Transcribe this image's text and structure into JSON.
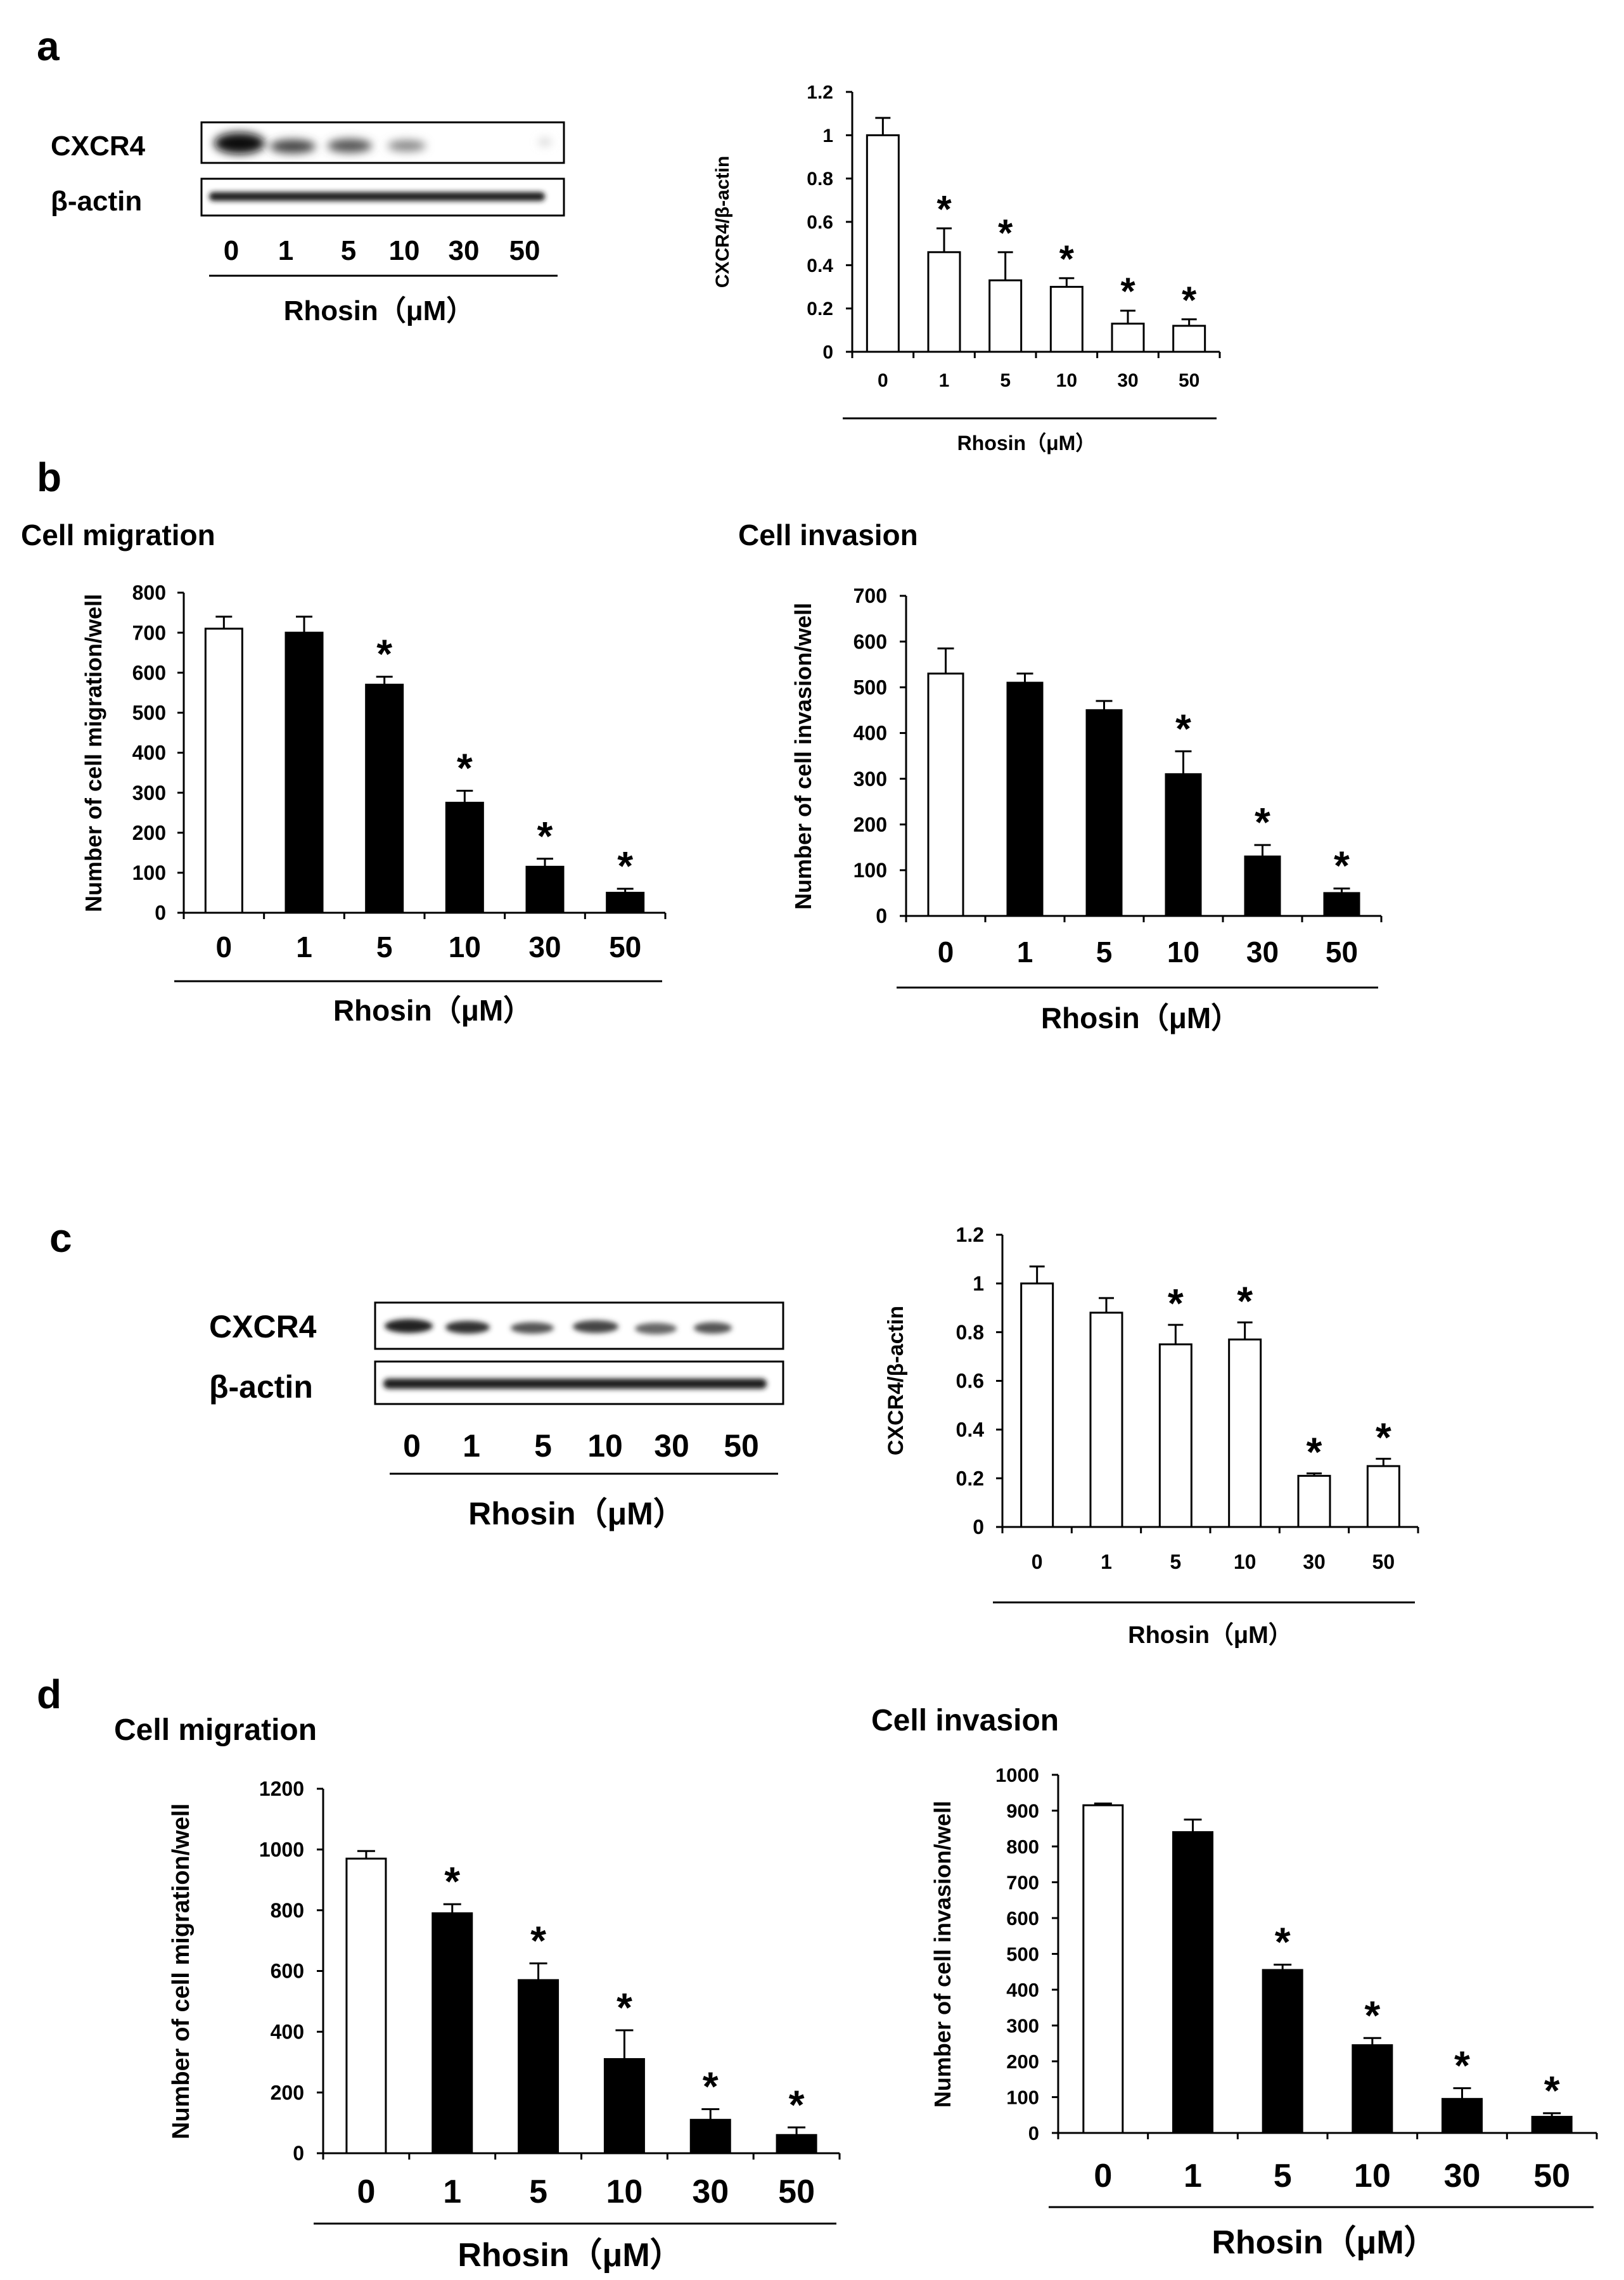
{
  "panels": {
    "a": {
      "label": "a",
      "blot": {
        "bands": [
          "CXCR4",
          "β-actin"
        ],
        "lanes": [
          "0",
          "1",
          "5",
          "10",
          "30",
          "50"
        ],
        "xlabel": "Rhosin（μM）"
      }
    },
    "b": {
      "label": "b",
      "titles": [
        "Cell migration",
        "Cell invasion"
      ]
    },
    "c": {
      "label": "c",
      "blot": {
        "bands": [
          "CXCR4",
          "β-actin"
        ],
        "lanes": [
          "0",
          "1",
          "5",
          "10",
          "30",
          "50"
        ],
        "xlabel": "Rhosin（μM）"
      }
    },
    "d": {
      "label": "d",
      "titles": [
        "Cell migration",
        "Cell invasion"
      ]
    }
  },
  "chart_data": [
    {
      "id": "a-right",
      "type": "bar",
      "title": "",
      "categories": [
        "0",
        "1",
        "5",
        "10",
        "30",
        "50"
      ],
      "values": [
        1.0,
        0.46,
        0.33,
        0.3,
        0.13,
        0.12
      ],
      "errors": [
        0.08,
        0.11,
        0.13,
        0.04,
        0.06,
        0.03
      ],
      "fills": [
        "white",
        "white",
        "white",
        "white",
        "white",
        "white"
      ],
      "significant": [
        false,
        true,
        true,
        true,
        true,
        true
      ],
      "star": "*",
      "xlabel": "Rhosin（μM）",
      "ylabel": "CXCR4/β-actin",
      "ylim": [
        0,
        1.2
      ],
      "yticks": [
        "0",
        "0.2",
        "0.4",
        "0.6",
        "0.8",
        "1",
        "1.2"
      ],
      "ytick_values": [
        0,
        0.2,
        0.4,
        0.6,
        0.8,
        1.0,
        1.2
      ]
    },
    {
      "id": "b-left",
      "type": "bar",
      "title": "Cell migration",
      "categories": [
        "0",
        "1",
        "5",
        "10",
        "30",
        "50"
      ],
      "values": [
        710,
        700,
        570,
        275,
        115,
        50
      ],
      "errors": [
        30,
        40,
        20,
        30,
        20,
        10
      ],
      "fills": [
        "white",
        "black",
        "black",
        "black",
        "black",
        "black"
      ],
      "significant": [
        false,
        false,
        true,
        true,
        true,
        true
      ],
      "star": "*",
      "xlabel": "Rhosin（μM）",
      "ylabel": "Number of cell migration/well",
      "ylim": [
        0,
        800
      ],
      "yticks": [
        "0",
        "100",
        "200",
        "300",
        "400",
        "500",
        "600",
        "700",
        "800"
      ],
      "ytick_values": [
        0,
        100,
        200,
        300,
        400,
        500,
        600,
        700,
        800
      ]
    },
    {
      "id": "b-right",
      "type": "bar",
      "title": "Cell invasion",
      "categories": [
        "0",
        "1",
        "5",
        "10",
        "30",
        "50"
      ],
      "values": [
        530,
        510,
        450,
        310,
        130,
        50
      ],
      "errors": [
        55,
        20,
        20,
        50,
        25,
        10
      ],
      "fills": [
        "white",
        "black",
        "black",
        "black",
        "black",
        "black"
      ],
      "significant": [
        false,
        false,
        false,
        true,
        true,
        true
      ],
      "star": "*",
      "xlabel": "Rhosin（μM）",
      "ylabel": "Number of cell invasion/well",
      "ylim": [
        0,
        700
      ],
      "yticks": [
        "0",
        "100",
        "200",
        "300",
        "400",
        "500",
        "600",
        "700"
      ],
      "ytick_values": [
        0,
        100,
        200,
        300,
        400,
        500,
        600,
        700
      ]
    },
    {
      "id": "c-right",
      "type": "bar",
      "title": "",
      "categories": [
        "0",
        "1",
        "5",
        "10",
        "30",
        "50"
      ],
      "values": [
        1.0,
        0.88,
        0.75,
        0.77,
        0.21,
        0.25
      ],
      "errors": [
        0.07,
        0.06,
        0.08,
        0.07,
        0.01,
        0.03
      ],
      "fills": [
        "white",
        "white",
        "white",
        "white",
        "white",
        "white"
      ],
      "significant": [
        false,
        false,
        true,
        true,
        true,
        true
      ],
      "star": "*",
      "xlabel": "Rhosin（μM）",
      "ylabel": "CXCR4/β-actin",
      "ylim": [
        0,
        1.2
      ],
      "yticks": [
        "0",
        "0.2",
        "0.4",
        "0.6",
        "0.8",
        "1",
        "1.2"
      ],
      "ytick_values": [
        0,
        0.2,
        0.4,
        0.6,
        0.8,
        1.0,
        1.2
      ]
    },
    {
      "id": "d-left",
      "type": "bar",
      "title": "Cell migration",
      "categories": [
        "0",
        "1",
        "5",
        "10",
        "30",
        "50"
      ],
      "values": [
        970,
        790,
        570,
        310,
        110,
        60
      ],
      "errors": [
        25,
        30,
        55,
        95,
        35,
        25
      ],
      "fills": [
        "white",
        "black",
        "black",
        "black",
        "black",
        "black"
      ],
      "significant": [
        false,
        true,
        true,
        true,
        true,
        true
      ],
      "star": "*",
      "xlabel": "Rhosin（μM）",
      "ylabel": "Number of cell migration/well",
      "ylim": [
        0,
        1200
      ],
      "yticks": [
        "0",
        "200",
        "400",
        "600",
        "800",
        "1000",
        "1200"
      ],
      "ytick_values": [
        0,
        200,
        400,
        600,
        800,
        1000,
        1200
      ]
    },
    {
      "id": "d-right",
      "type": "bar",
      "title": "Cell invasion",
      "categories": [
        "0",
        "1",
        "5",
        "10",
        "30",
        "50"
      ],
      "values": [
        915,
        840,
        455,
        245,
        95,
        45
      ],
      "errors": [
        5,
        35,
        15,
        20,
        30,
        10
      ],
      "fills": [
        "white",
        "black",
        "black",
        "black",
        "black",
        "black"
      ],
      "significant": [
        false,
        false,
        true,
        true,
        true,
        true
      ],
      "star": "*",
      "xlabel": "Rhosin（μM）",
      "ylabel": "Number of cell invasion/well",
      "ylim": [
        0,
        1000
      ],
      "yticks": [
        "0",
        "100",
        "200",
        "300",
        "400",
        "500",
        "600",
        "700",
        "800",
        "900",
        "1000"
      ],
      "ytick_values": [
        0,
        100,
        200,
        300,
        400,
        500,
        600,
        700,
        800,
        900,
        1000
      ]
    }
  ]
}
